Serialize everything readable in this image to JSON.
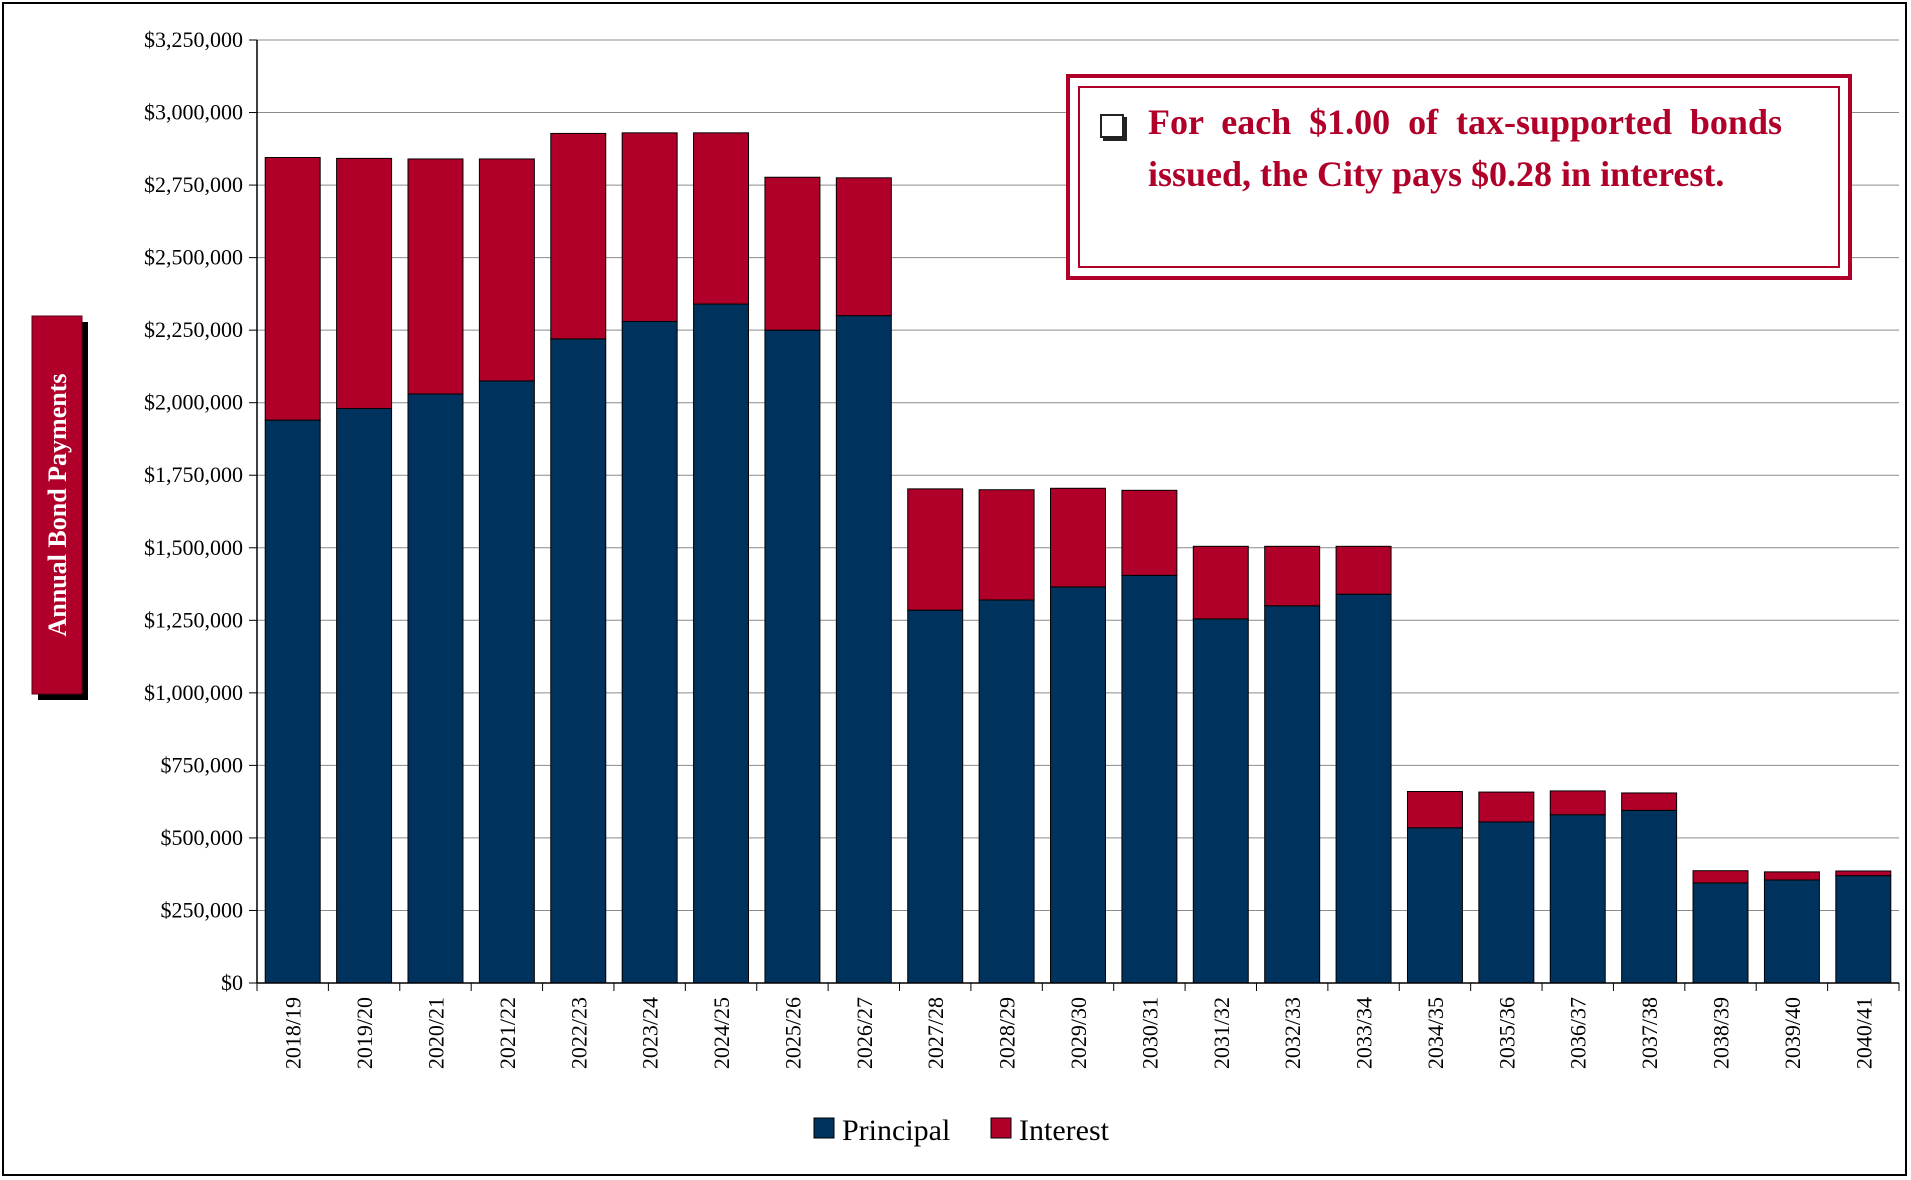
{
  "chart_data": {
    "type": "bar",
    "stacked": true,
    "categories": [
      "2018/19",
      "2019/20",
      "2020/21",
      "2021/22",
      "2022/23",
      "2023/24",
      "2024/25",
      "2025/26",
      "2026/27",
      "2027/28",
      "2028/29",
      "2029/30",
      "2030/31",
      "2031/32",
      "2032/33",
      "2033/34",
      "2034/35",
      "2035/36",
      "2036/37",
      "2037/38",
      "2038/39",
      "2039/40",
      "2040/41"
    ],
    "series": [
      {
        "name": "Principal",
        "color": "#00325E",
        "values": [
          1940000,
          1980000,
          2030000,
          2075000,
          2220000,
          2280000,
          2340000,
          2250000,
          2300000,
          1285000,
          1320000,
          1365000,
          1405000,
          1255000,
          1300000,
          1340000,
          535000,
          555000,
          580000,
          595000,
          345000,
          355000,
          370000
        ]
      },
      {
        "name": "Interest",
        "color": "#B0002A",
        "values": [
          905000,
          862000,
          810000,
          765000,
          708000,
          650000,
          590000,
          527000,
          475000,
          418000,
          380000,
          340000,
          293000,
          250000,
          205000,
          165000,
          125000,
          103000,
          82000,
          60000,
          42000,
          28000,
          16000
        ]
      }
    ],
    "ylabel": "Annual Bond Payments",
    "ylim": [
      0,
      3250000
    ],
    "yticks": [
      "$0",
      "$250,000",
      "$500,000",
      "$750,000",
      "$1,000,000",
      "$1,250,000",
      "$1,500,000",
      "$1,750,000",
      "$2,000,000",
      "$2,250,000",
      "$2,500,000",
      "$2,750,000",
      "$3,000,000",
      "$3,250,000"
    ],
    "grid": true,
    "legend_position": "bottom-center"
  },
  "callout": {
    "text": "For each $1.00 of tax-supported bonds issued, the City pays $0.28 in interest."
  }
}
